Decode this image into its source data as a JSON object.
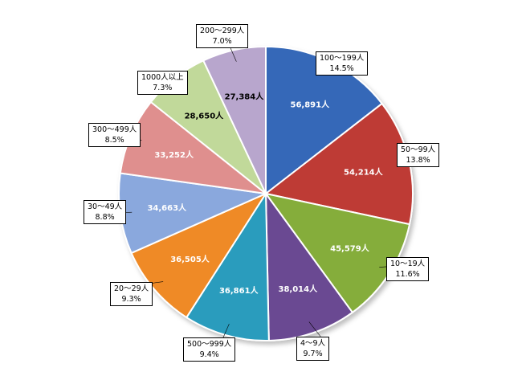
{
  "chart_data": {
    "type": "pie",
    "title": "",
    "slices": [
      {
        "label": "100〜199人",
        "value": 56891,
        "value_label": "56,891人",
        "percent": "14.5%",
        "color": "#3468b8"
      },
      {
        "label": "50〜99人",
        "value": 54214,
        "value_label": "54,214人",
        "percent": "13.8%",
        "color": "#be3a36"
      },
      {
        "label": "10〜19人",
        "value": 45579,
        "value_label": "45,579人",
        "percent": "11.6%",
        "color": "#85ad3a"
      },
      {
        "label": "4〜9人",
        "value": 38014,
        "value_label": "38,014人",
        "percent": "9.7%",
        "color": "#6a4a92"
      },
      {
        "label": "500〜999人",
        "value": 36861,
        "value_label": "36,861人",
        "percent": "9.4%",
        "color": "#2b9cbd"
      },
      {
        "label": "20〜29人",
        "value": 36505,
        "value_label": "36,505人",
        "percent": "9.3%",
        "color": "#ef8a25"
      },
      {
        "label": "30〜49人",
        "value": 34663,
        "value_label": "34,663人",
        "percent": "8.8%",
        "color": "#8aa8dd"
      },
      {
        "label": "300〜499人",
        "value": 33252,
        "value_label": "33,252人",
        "percent": "8.5%",
        "color": "#df8f8e"
      },
      {
        "label": "1000人以上",
        "value": 28650,
        "value_label": "28,650人",
        "percent": "7.3%",
        "color": "#c1d99a"
      },
      {
        "label": "200〜299人",
        "value": 27384,
        "value_label": "27,384人",
        "percent": "7.0%",
        "color": "#b8a6cd"
      }
    ]
  }
}
